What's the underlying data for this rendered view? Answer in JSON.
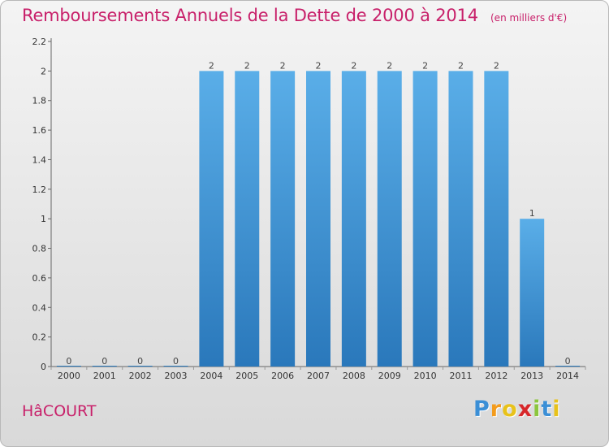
{
  "chart_data": {
    "type": "bar",
    "title": "Remboursements Annuels de la Dette de 2000 à 2014",
    "subtitle": "(en milliers d'€)",
    "categories": [
      "2000",
      "2001",
      "2002",
      "2003",
      "2004",
      "2005",
      "2006",
      "2007",
      "2008",
      "2009",
      "2010",
      "2011",
      "2012",
      "2013",
      "2014"
    ],
    "values": [
      0,
      0,
      0,
      0,
      2,
      2,
      2,
      2,
      2,
      2,
      2,
      2,
      2,
      1,
      0
    ],
    "data_labels": [
      "0",
      "0",
      "0",
      "0",
      "2",
      "2",
      "2",
      "2",
      "2",
      "2",
      "2",
      "2",
      "2",
      "1",
      "0"
    ],
    "ylim": [
      0,
      2.2
    ],
    "yticks": [
      0,
      0.2,
      0.4,
      0.6,
      0.8,
      1,
      1.2,
      1.4,
      1.6,
      1.8,
      2,
      2.2
    ],
    "ytick_labels": [
      "0",
      "0.2",
      "0.4",
      "0.6",
      "0.8",
      "1",
      "1.2",
      "1.4",
      "1.6",
      "1.8",
      "2",
      "2.2"
    ],
    "xlabel": "",
    "ylabel": "",
    "grid": false,
    "legend": "none",
    "bar_color_light": "#5aaee8",
    "bar_color_dark": "#2a78bb"
  },
  "footer": {
    "commune": "HâCOURT",
    "logo_letters": [
      "P",
      "r",
      "o",
      "x",
      "i",
      "t",
      "i"
    ],
    "logo_colors": [
      "#3b8fd6",
      "#f39b1c",
      "#e8c21a",
      "#d7272a",
      "#8cc63e",
      "#3b8fd6",
      "#e8c21a"
    ]
  }
}
